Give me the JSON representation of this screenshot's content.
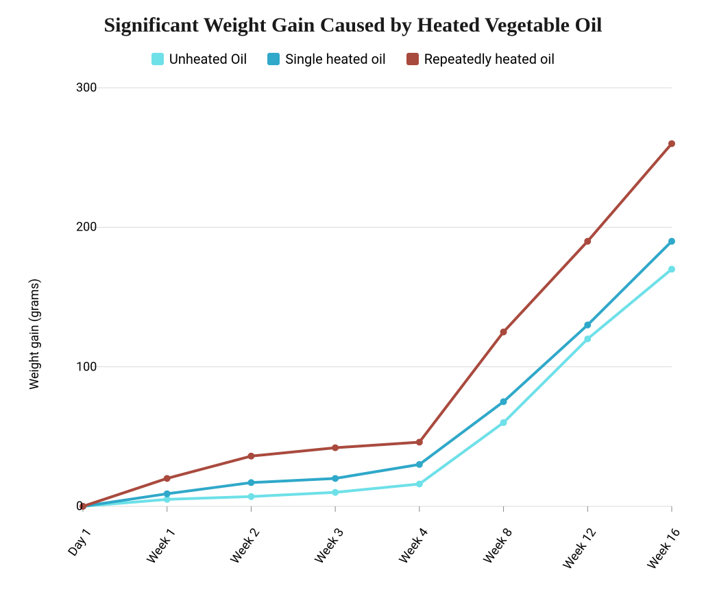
{
  "title": "Significant Weight Gain Caused by Heated Vegetable Oil",
  "title_fontsize": 30,
  "title_color": "#1a1a1a",
  "y_axis_label": "Weight gain (grams)",
  "y_axis_fontsize": 18,
  "legend_fontsize": 20,
  "x_tick_fontsize": 18,
  "background_color": "#ffffff",
  "grid_color": "#d9d9d9",
  "axis_tick_color": "#888888",
  "chart": {
    "type": "line",
    "categories": [
      "Day 1",
      "Week 1",
      "Week 2",
      "Week 3",
      "Week 4",
      "Week 8",
      "Week 12",
      "Week 16"
    ],
    "ylim": [
      0,
      300
    ],
    "yticks": [
      0,
      100,
      200,
      300
    ],
    "line_width": 4,
    "marker_radius": 5,
    "series": [
      {
        "label": "Unheated Oil",
        "color": "#6ee0e8",
        "values": [
          0,
          5,
          7,
          10,
          16,
          60,
          120,
          170
        ]
      },
      {
        "label": "Single heated oil",
        "color": "#2fa8c9",
        "values": [
          0,
          9,
          17,
          20,
          30,
          75,
          130,
          190
        ]
      },
      {
        "label": "Repeatedly heated oil",
        "color": "#a94a3e",
        "values": [
          0,
          20,
          36,
          42,
          46,
          125,
          190,
          260
        ]
      }
    ]
  }
}
